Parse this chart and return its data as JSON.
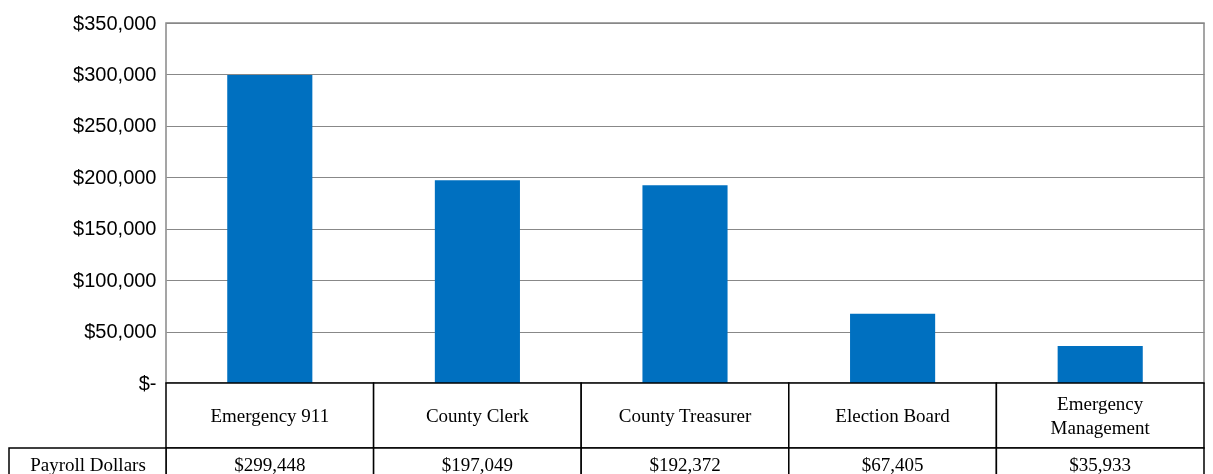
{
  "chart_data": {
    "type": "bar",
    "categories": [
      "Emergency 911",
      "County Clerk",
      "County Treasurer",
      "Election Board",
      "Emergency Management"
    ],
    "series": [
      {
        "name": "Payroll Dollars",
        "color": "#0070c0",
        "values": [
          299448,
          197049,
          192372,
          67405,
          35933
        ],
        "value_labels": [
          "$299,448",
          "$197,049",
          "$192,372",
          "$67,405",
          "$35,933"
        ]
      }
    ],
    "ylim": [
      0,
      350000
    ],
    "yticks": [
      {
        "value": 0,
        "label": "$-"
      },
      {
        "value": 50000,
        "label": "$50,000"
      },
      {
        "value": 100000,
        "label": "$100,000"
      },
      {
        "value": 150000,
        "label": "$150,000"
      },
      {
        "value": 200000,
        "label": "$200,000"
      },
      {
        "value": 250000,
        "label": "$250,000"
      },
      {
        "value": 300000,
        "label": "$300,000"
      },
      {
        "value": 350000,
        "label": "$350,000"
      }
    ],
    "grid": "y",
    "legend": false
  }
}
